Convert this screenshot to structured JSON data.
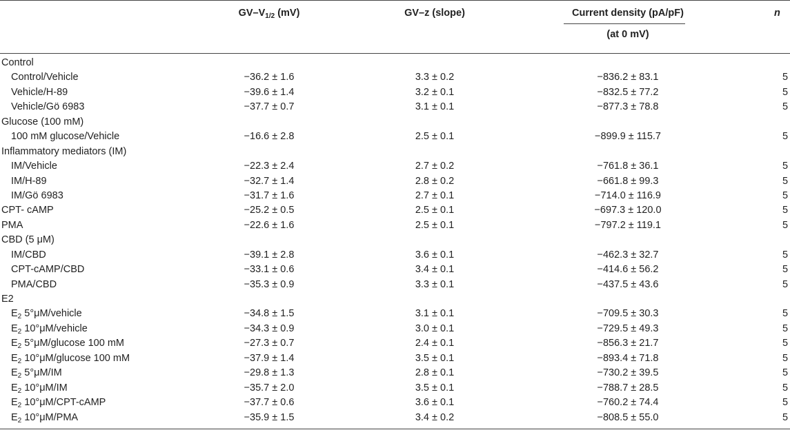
{
  "header": {
    "v12_label_pre": "GV–V",
    "v12_label_sub": "1/2",
    "v12_label_post": " (mV)",
    "z_label": "GV–z (slope)",
    "current_label": "Current density (pA/pF)",
    "current_sublabel": "(at 0 mV)",
    "n_label": "n"
  },
  "rows": [
    {
      "type": "group",
      "label": "Control"
    },
    {
      "type": "data",
      "label": "Control/Vehicle",
      "v12": "−36.2 ± 1.6",
      "z": "3.3 ± 0.2",
      "current": "−836.2 ± 83.1",
      "n": "5"
    },
    {
      "type": "data",
      "label": "Vehicle/H-89",
      "v12": "−39.6 ± 1.4",
      "z": "3.2 ± 0.1",
      "current": "−832.5 ± 77.2",
      "n": "5"
    },
    {
      "type": "data",
      "label": "Vehicle/Gö 6983",
      "v12": "−37.7 ± 0.7",
      "z": "3.1 ± 0.1",
      "current": "−877.3 ± 78.8",
      "n": "5"
    },
    {
      "type": "group",
      "label": "Glucose (100 mM)"
    },
    {
      "type": "data",
      "label": "100 mM glucose/Vehicle",
      "v12": "−16.6 ± 2.8",
      "z": "2.5 ± 0.1",
      "current": "−899.9 ± 115.7",
      "n": "5"
    },
    {
      "type": "group",
      "label": "Inflammatory mediators (IM)"
    },
    {
      "type": "data",
      "label": "IM/Vehicle",
      "v12": "−22.3 ± 2.4",
      "z": "2.7 ± 0.2",
      "current": "−761.8 ± 36.1",
      "n": "5"
    },
    {
      "type": "data",
      "label": "IM/H-89",
      "v12": "−32.7 ± 1.4",
      "z": "2.8 ± 0.2",
      "current": "−661.8 ± 99.3",
      "n": "5"
    },
    {
      "type": "data",
      "label": "IM/Gö 6983",
      "v12": "−31.7 ± 1.6",
      "z": "2.7 ± 0.1",
      "current": "−714.0 ± 116.9",
      "n": "5"
    },
    {
      "type": "data",
      "flat": true,
      "label": "CPT- cAMP",
      "v12": "−25.2 ± 0.5",
      "z": "2.5 ± 0.1",
      "current": "−697.3 ± 120.0",
      "n": "5"
    },
    {
      "type": "data",
      "flat": true,
      "label": "PMA",
      "v12": "−22.6 ± 1.6",
      "z": "2.5 ± 0.1",
      "current": "−797.2 ± 119.1",
      "n": "5"
    },
    {
      "type": "group",
      "label": "CBD (5 μM)"
    },
    {
      "type": "data",
      "label": "IM/CBD",
      "v12": "−39.1 ± 2.8",
      "z": "3.6 ± 0.1",
      "current": "−462.3 ± 32.7",
      "n": "5"
    },
    {
      "type": "data",
      "label": "CPT-cAMP/CBD",
      "v12": "−33.1 ± 0.6",
      "z": "3.4 ± 0.1",
      "current": "−414.6 ± 56.2",
      "n": "5"
    },
    {
      "type": "data",
      "label": "PMA/CBD",
      "v12": "−35.3 ± 0.9",
      "z": "3.3 ± 0.1",
      "current": "−437.5 ± 43.6",
      "n": "5"
    },
    {
      "type": "group",
      "label": "E2"
    },
    {
      "type": "e2",
      "label_pre": "E",
      "label_sub": "2",
      "label_post": " 5°μM/vehicle",
      "v12": "−34.8 ± 1.5",
      "z": "3.1 ± 0.1",
      "current": "−709.5 ± 30.3",
      "n": "5"
    },
    {
      "type": "e2",
      "label_pre": "E",
      "label_sub": "2",
      "label_post": " 10°μM/vehicle",
      "v12": "−34.3 ± 0.9",
      "z": "3.0 ± 0.1",
      "current": "−729.5 ± 49.3",
      "n": "5"
    },
    {
      "type": "e2",
      "label_pre": "E",
      "label_sub": "2",
      "label_post": " 5°μM/glucose 100 mM",
      "v12": "−27.3 ± 0.7",
      "z": "2.4 ± 0.1",
      "current": "−856.3 ± 21.7",
      "n": "5"
    },
    {
      "type": "e2",
      "label_pre": "E",
      "label_sub": "2",
      "label_post": " 10°μM/glucose 100 mM",
      "v12": "−37.9 ± 1.4",
      "z": "3.5 ± 0.1",
      "current": "−893.4 ± 71.8",
      "n": "5"
    },
    {
      "type": "e2",
      "label_pre": "E",
      "label_sub": "2",
      "label_post": " 5°μM/IM",
      "v12": "−29.8 ± 1.3",
      "z": "2.8 ± 0.1",
      "current": "−730.2 ± 39.5",
      "n": "5"
    },
    {
      "type": "e2",
      "label_pre": "E",
      "label_sub": "2",
      "label_post": " 10°μM/IM",
      "v12": "−35.7 ± 2.0",
      "z": "3.5 ± 0.1",
      "current": "−788.7 ± 28.5",
      "n": "5"
    },
    {
      "type": "e2",
      "label_pre": "E",
      "label_sub": "2",
      "label_post": " 10°μM/CPT-cAMP",
      "v12": "−37.7 ± 0.6",
      "z": "3.6 ± 0.1",
      "current": "−760.2 ± 74.4",
      "n": "5"
    },
    {
      "type": "e2",
      "label_pre": "E",
      "label_sub": "2",
      "label_post": " 10°μM/PMA",
      "v12": "−35.9 ± 1.5",
      "z": "3.4 ± 0.2",
      "current": "−808.5 ± 55.0",
      "n": "5"
    }
  ]
}
